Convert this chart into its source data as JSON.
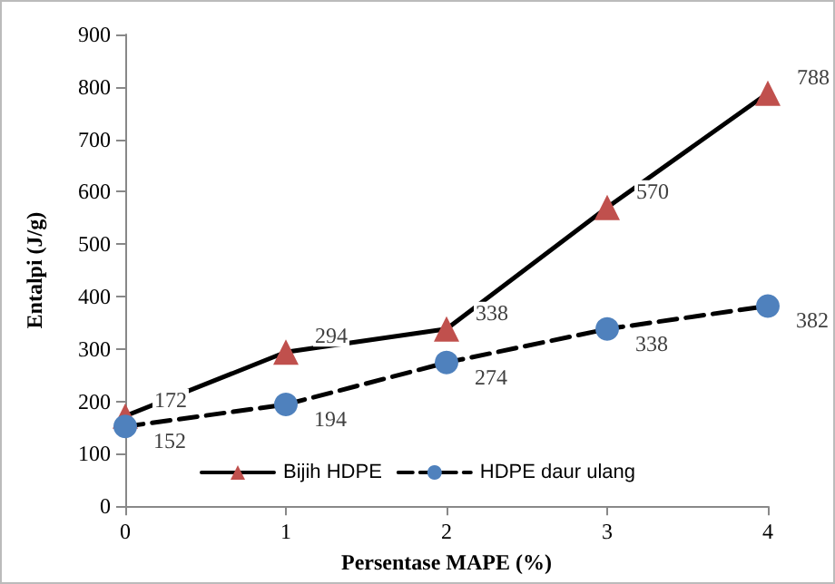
{
  "chart_data": {
    "type": "line",
    "xlabel": "Persentase MAPE (%)",
    "ylabel": "Entalpi (J/g)",
    "x": [
      0,
      1,
      2,
      3,
      4
    ],
    "xlim": [
      0,
      4
    ],
    "xticks": [
      0,
      1,
      2,
      3,
      4
    ],
    "ylim": [
      0,
      900
    ],
    "yticks": [
      0,
      100,
      200,
      300,
      400,
      500,
      600,
      700,
      800,
      900
    ],
    "series": [
      {
        "name": "Bijih HDPE",
        "color": "#c0504d",
        "marker": "triangle",
        "line_style": "solid",
        "values": [
          172,
          294,
          338,
          570,
          788
        ]
      },
      {
        "name": "HDPE daur ulang",
        "color": "#4f81bd",
        "marker": "circle",
        "line_style": "dashed",
        "values": [
          152,
          194,
          274,
          338,
          382
        ]
      }
    ],
    "data_labels": true,
    "grid": false,
    "legend": "bottom"
  }
}
